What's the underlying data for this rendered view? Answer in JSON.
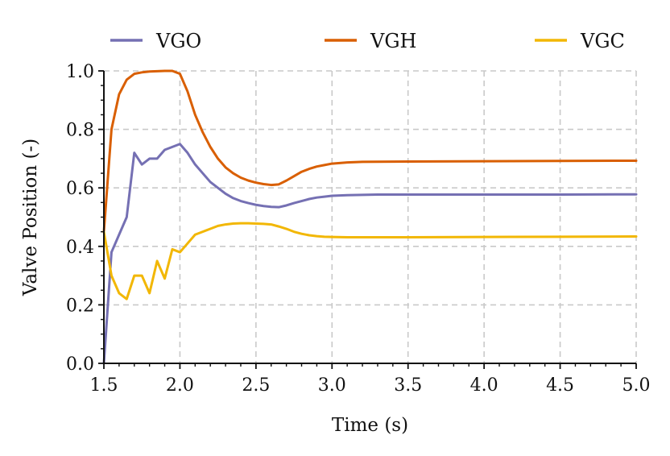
{
  "chart_data": {
    "type": "line",
    "title": "",
    "xlabel": "Time (s)",
    "ylabel": "Valve Position (-)",
    "xlim": [
      1.5,
      5.0
    ],
    "ylim": [
      0.0,
      1.0
    ],
    "grid": true,
    "legend_position": "top",
    "x_ticks": [
      1.5,
      2.0,
      2.5,
      3.0,
      3.5,
      4.0,
      4.5,
      5.0
    ],
    "x_tick_labels": [
      "1.5",
      "2.0",
      "2.5",
      "3.0",
      "3.5",
      "4.0",
      "4.5",
      "5.0"
    ],
    "y_ticks": [
      0.0,
      0.2,
      0.4,
      0.6,
      0.8,
      1.0
    ],
    "y_tick_labels": [
      "0.0",
      "0.2",
      "0.4",
      "0.6",
      "0.8",
      "1.0"
    ],
    "series": [
      {
        "name": "VGO",
        "color": "#7570b3",
        "x": [
          1.5,
          1.55,
          1.6,
          1.65,
          1.7,
          1.75,
          1.8,
          1.85,
          1.9,
          1.95,
          2.0,
          2.05,
          2.1,
          2.15,
          2.2,
          2.25,
          2.3,
          2.35,
          2.4,
          2.45,
          2.5,
          2.55,
          2.6,
          2.65,
          2.7,
          2.75,
          2.8,
          2.85,
          2.9,
          2.95,
          3.0,
          3.1,
          3.2,
          3.3,
          3.5,
          4.0,
          4.5,
          5.0
        ],
        "values": [
          0.0,
          0.38,
          0.44,
          0.5,
          0.72,
          0.68,
          0.7,
          0.7,
          0.73,
          0.74,
          0.75,
          0.72,
          0.68,
          0.65,
          0.62,
          0.6,
          0.58,
          0.565,
          0.555,
          0.548,
          0.542,
          0.538,
          0.535,
          0.534,
          0.54,
          0.548,
          0.555,
          0.562,
          0.567,
          0.57,
          0.573,
          0.575,
          0.576,
          0.577,
          0.577,
          0.577,
          0.577,
          0.578
        ]
      },
      {
        "name": "VGH",
        "color": "#d95f02",
        "x": [
          1.5,
          1.55,
          1.6,
          1.65,
          1.7,
          1.75,
          1.8,
          1.85,
          1.9,
          1.95,
          2.0,
          2.05,
          2.1,
          2.15,
          2.2,
          2.25,
          2.3,
          2.35,
          2.4,
          2.45,
          2.5,
          2.55,
          2.6,
          2.65,
          2.7,
          2.75,
          2.8,
          2.85,
          2.9,
          2.95,
          3.0,
          3.1,
          3.2,
          3.5,
          4.0,
          4.5,
          5.0
        ],
        "values": [
          0.45,
          0.8,
          0.92,
          0.97,
          0.99,
          0.995,
          0.998,
          0.999,
          1.0,
          1.0,
          0.99,
          0.93,
          0.85,
          0.79,
          0.74,
          0.7,
          0.67,
          0.65,
          0.635,
          0.625,
          0.618,
          0.613,
          0.61,
          0.612,
          0.625,
          0.64,
          0.655,
          0.665,
          0.673,
          0.678,
          0.683,
          0.687,
          0.689,
          0.69,
          0.691,
          0.692,
          0.693
        ]
      },
      {
        "name": "VGC",
        "color": "#f2b705",
        "x": [
          1.5,
          1.55,
          1.6,
          1.65,
          1.7,
          1.75,
          1.8,
          1.85,
          1.9,
          1.95,
          2.0,
          2.05,
          2.1,
          2.15,
          2.2,
          2.25,
          2.3,
          2.35,
          2.4,
          2.45,
          2.5,
          2.55,
          2.6,
          2.65,
          2.7,
          2.75,
          2.8,
          2.85,
          2.9,
          2.95,
          3.0,
          3.1,
          3.2,
          3.5,
          4.0,
          4.5,
          5.0
        ],
        "values": [
          0.45,
          0.3,
          0.24,
          0.22,
          0.3,
          0.3,
          0.24,
          0.35,
          0.29,
          0.39,
          0.38,
          0.41,
          0.44,
          0.45,
          0.46,
          0.47,
          0.475,
          0.478,
          0.479,
          0.479,
          0.478,
          0.477,
          0.475,
          0.468,
          0.46,
          0.45,
          0.443,
          0.438,
          0.435,
          0.433,
          0.432,
          0.431,
          0.431,
          0.431,
          0.432,
          0.433,
          0.434
        ]
      }
    ]
  }
}
